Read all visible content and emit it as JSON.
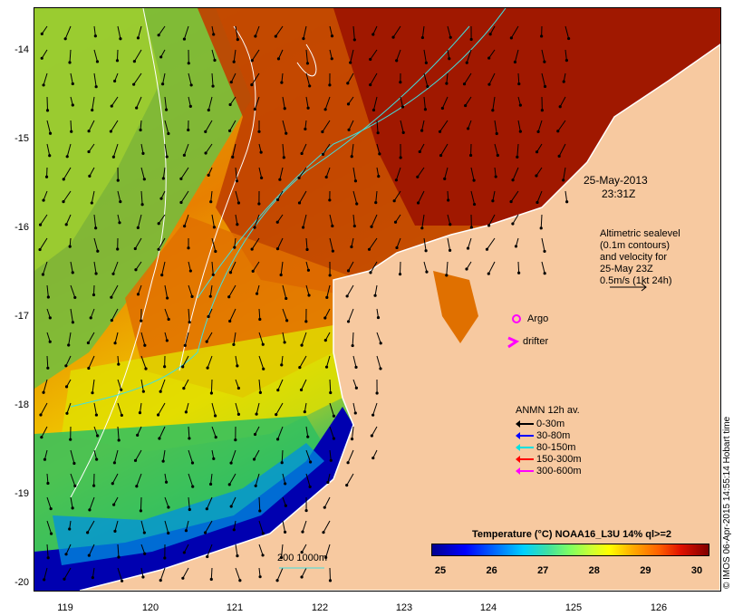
{
  "map": {
    "date_label": "25-May-2013",
    "time_label": "23:31Z",
    "altimetry_note": [
      "Altimetric sealevel",
      "(0.1m contours)",
      "and velocity for",
      "25-May 23Z",
      "0.5m/s (1kt 24h)"
    ],
    "y_ticks": [
      "-14",
      "-15",
      "-16",
      "-17",
      "-18",
      "-19",
      "-20"
    ],
    "x_ticks": [
      "119",
      "120",
      "121",
      "122",
      "123",
      "124",
      "125",
      "126"
    ],
    "argo_label": "Argo",
    "drifter_label": "drifter",
    "anmn_title": "ANMN 12h av.",
    "anmn_legend": [
      {
        "label": "0-30m",
        "color": "#000000"
      },
      {
        "label": "30-80m",
        "color": "#0000ff"
      },
      {
        "label": "80-150m",
        "color": "#00e0e0"
      },
      {
        "label": "150-300m",
        "color": "#ff0000"
      },
      {
        "label": "300-600m",
        "color": "#ff00ff"
      }
    ],
    "bathymetry_label": "200  1000m",
    "colorbar_title": "Temperature (°C) NOAA16_L3U 14% ql>=2",
    "colorbar_ticks": [
      "25",
      "26",
      "27",
      "28",
      "29",
      "30"
    ],
    "credit": "© IMOS 06-Apr-2015 14:55:14 Hobart time",
    "colors": {
      "land": "#f7c9a0",
      "warm": "#a01800",
      "mid": "#e07000",
      "cool": "#20c060",
      "cold": "#0000b0"
    }
  }
}
